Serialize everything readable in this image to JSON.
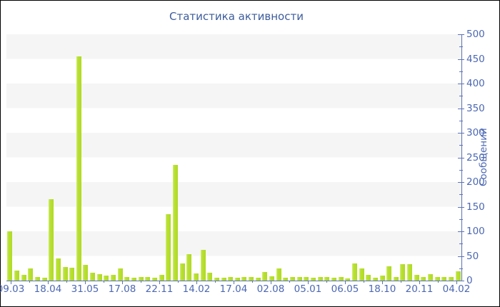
{
  "title": "Статистика активности",
  "y_axis_title": "Сообщений",
  "colors": {
    "title": "#3d5c9c",
    "axis": "#5e73b4",
    "tick_label": "#4c68b4",
    "bar_main": "#b6df2e",
    "bar_edge_light": "#d3ec78",
    "stripe_band": "#f5f5f5",
    "background": "#ffffff",
    "border": "#000000"
  },
  "chart_data": {
    "type": "bar",
    "title": "Статистика активности",
    "xlabel": "",
    "ylabel": "Сообщений",
    "ylim": [
      0,
      500
    ],
    "y_axis_position": "right",
    "y_ticks": [
      0,
      50,
      100,
      150,
      200,
      250,
      300,
      350,
      400,
      450,
      500
    ],
    "y_minor_tick_step": 25,
    "grid": "striped-horizontal-bands-every-50",
    "legend": "none",
    "x_tick_labels": [
      "09.03",
      "18.04",
      "31.05",
      "17.08",
      "22.11",
      "14.02",
      "17.04",
      "02.08",
      "05.01",
      "06.05",
      "18.10",
      "20.11",
      "04.02"
    ],
    "values": [
      100,
      20,
      12,
      25,
      8,
      6,
      165,
      45,
      28,
      26,
      455,
      32,
      16,
      13,
      10,
      12,
      25,
      8,
      6,
      8,
      8,
      6,
      12,
      135,
      235,
      35,
      54,
      14,
      62,
      16,
      6,
      6,
      8,
      6,
      8,
      7,
      6,
      17,
      9,
      25,
      6,
      7,
      7,
      7,
      6,
      8,
      8,
      6,
      7,
      5,
      35,
      25,
      12,
      6,
      10,
      29,
      7,
      33,
      33,
      12,
      8,
      13,
      8,
      7,
      8,
      19
    ],
    "notable_points": [
      {
        "label": "09.03",
        "value": 100
      },
      {
        "label": "18.04",
        "value": 165
      },
      {
        "label": "before 31.05",
        "value": 455
      },
      {
        "label": "after 22.11",
        "value": 135
      },
      {
        "label": "before 14.02",
        "value": 235
      },
      {
        "label": "after 14.02",
        "value": 62
      }
    ]
  }
}
